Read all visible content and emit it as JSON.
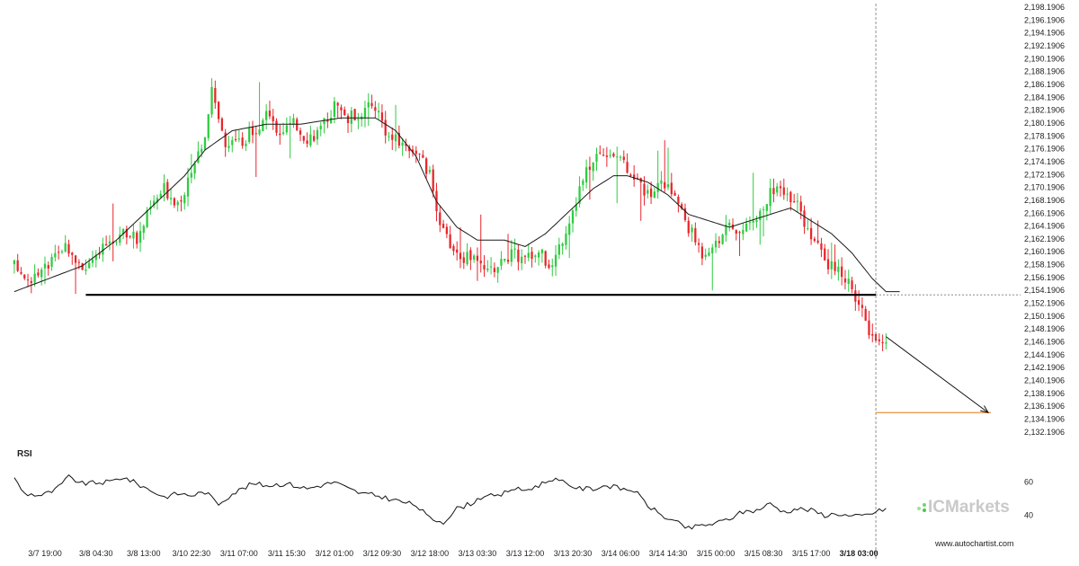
{
  "chart_data": {
    "type": "candlestick",
    "ylim": [
      2131.1906,
      2198.1906
    ],
    "y_ticks": [
      "2,198.1906",
      "2,196.1906",
      "2,194.1906",
      "2,192.1906",
      "2,190.1906",
      "2,188.1906",
      "2,186.1906",
      "2,184.1906",
      "2,182.1906",
      "2,180.1906",
      "2,178.1906",
      "2,176.1906",
      "2,174.1906",
      "2,172.1906",
      "2,170.1906",
      "2,168.1906",
      "2,166.1906",
      "2,164.1906",
      "2,162.1906",
      "2,160.1906",
      "2,158.1906",
      "2,156.1906",
      "2,154.1906",
      "2,152.1906",
      "2,150.1906",
      "2,148.1906",
      "2,146.1906",
      "2,144.1906",
      "2,142.1906",
      "2,140.1906",
      "2,138.1906",
      "2,136.1906",
      "2,134.1906",
      "2,132.1906"
    ],
    "x_ticks": [
      "3/7 19:00",
      "3/8 04:30",
      "3/8 13:00",
      "3/10 22:30",
      "3/11 07:00",
      "3/11 15:30",
      "3/12 01:00",
      "3/12 09:30",
      "3/12 18:00",
      "3/13 03:30",
      "3/13 12:00",
      "3/13 20:30",
      "3/14 06:00",
      "3/14 14:30",
      "3/15 00:00",
      "3/15 08:30",
      "3/15 17:00",
      "3/18 03:00"
    ],
    "x_ticks_bold": [
      "3/18 03:00"
    ],
    "close_path": [
      [
        0,
        2158
      ],
      [
        4,
        2156
      ],
      [
        8,
        2157
      ],
      [
        12,
        2159
      ],
      [
        16,
        2161
      ],
      [
        20,
        2158
      ],
      [
        24,
        2159
      ],
      [
        28,
        2162
      ],
      [
        32,
        2163
      ],
      [
        36,
        2162
      ],
      [
        40,
        2167
      ],
      [
        44,
        2170
      ],
      [
        48,
        2168
      ],
      [
        52,
        2172
      ],
      [
        56,
        2179
      ],
      [
        58,
        2186
      ],
      [
        62,
        2176
      ],
      [
        66,
        2177
      ],
      [
        70,
        2179
      ],
      [
        74,
        2181
      ],
      [
        78,
        2179
      ],
      [
        82,
        2180
      ],
      [
        86,
        2178
      ],
      [
        90,
        2179
      ],
      [
        94,
        2183
      ],
      [
        98,
        2181
      ],
      [
        102,
        2182
      ],
      [
        106,
        2183
      ],
      [
        110,
        2178
      ],
      [
        114,
        2177
      ],
      [
        118,
        2176
      ],
      [
        122,
        2172
      ],
      [
        126,
        2163
      ],
      [
        130,
        2160
      ],
      [
        134,
        2159
      ],
      [
        138,
        2157
      ],
      [
        142,
        2158
      ],
      [
        146,
        2160
      ],
      [
        150,
        2159
      ],
      [
        154,
        2160
      ],
      [
        158,
        2158
      ],
      [
        162,
        2164
      ],
      [
        166,
        2170
      ],
      [
        170,
        2175
      ],
      [
        174,
        2176
      ],
      [
        178,
        2175
      ],
      [
        182,
        2172
      ],
      [
        186,
        2169
      ],
      [
        190,
        2171
      ],
      [
        194,
        2169
      ],
      [
        198,
        2164
      ],
      [
        202,
        2160
      ],
      [
        206,
        2162
      ],
      [
        210,
        2164
      ],
      [
        214,
        2163
      ],
      [
        218,
        2166
      ],
      [
        222,
        2169
      ],
      [
        226,
        2170
      ],
      [
        230,
        2167
      ],
      [
        234,
        2163
      ],
      [
        238,
        2159
      ],
      [
        242,
        2157
      ],
      [
        246,
        2155
      ],
      [
        250,
        2149
      ],
      [
        252,
        2147
      ],
      [
        256,
        2147
      ]
    ],
    "ma_path": [
      [
        0,
        2154
      ],
      [
        10,
        2156
      ],
      [
        20,
        2158
      ],
      [
        30,
        2162
      ],
      [
        40,
        2167
      ],
      [
        50,
        2172
      ],
      [
        56,
        2176
      ],
      [
        64,
        2179
      ],
      [
        74,
        2180
      ],
      [
        84,
        2180
      ],
      [
        96,
        2181
      ],
      [
        106,
        2181
      ],
      [
        112,
        2179
      ],
      [
        118,
        2175
      ],
      [
        124,
        2168
      ],
      [
        130,
        2164
      ],
      [
        136,
        2162
      ],
      [
        144,
        2162
      ],
      [
        150,
        2161
      ],
      [
        156,
        2163
      ],
      [
        164,
        2167
      ],
      [
        170,
        2170
      ],
      [
        176,
        2172
      ],
      [
        180,
        2172
      ],
      [
        186,
        2171
      ],
      [
        192,
        2169
      ],
      [
        198,
        2166
      ],
      [
        204,
        2165
      ],
      [
        210,
        2164
      ],
      [
        216,
        2165
      ],
      [
        222,
        2166
      ],
      [
        228,
        2167
      ],
      [
        234,
        2165
      ],
      [
        240,
        2163
      ],
      [
        246,
        2160
      ],
      [
        252,
        2156
      ],
      [
        256,
        2154
      ]
    ],
    "ma_end_index": 260,
    "candle_count": 257,
    "support_level": 2153.5,
    "support_start_index": 21,
    "forecast": {
      "from_index": 256,
      "from_value": 2147,
      "to_index": 286,
      "to_value": 2135.2
    },
    "target_level": 2135.2,
    "current_time_index": 253,
    "current_price_marker": 2153.5,
    "x_tick_indices": [
      9,
      24,
      38,
      52,
      66,
      80,
      94,
      108,
      122,
      136,
      150,
      164,
      178,
      192,
      206,
      220,
      234,
      248
    ],
    "total_slots": 296,
    "rsi": {
      "label": "RSI",
      "ylim": [
        30,
        70
      ],
      "ticks": [
        "60",
        "40"
      ],
      "tick_values": [
        60,
        40
      ],
      "path": [
        [
          0,
          62
        ],
        [
          3,
          53
        ],
        [
          8,
          52
        ],
        [
          12,
          55
        ],
        [
          16,
          63
        ],
        [
          20,
          59
        ],
        [
          28,
          60
        ],
        [
          32,
          63
        ],
        [
          38,
          57
        ],
        [
          44,
          51
        ],
        [
          48,
          53
        ],
        [
          52,
          52
        ],
        [
          56,
          54
        ],
        [
          60,
          47
        ],
        [
          64,
          53
        ],
        [
          70,
          59
        ],
        [
          74,
          58
        ],
        [
          80,
          59
        ],
        [
          86,
          56
        ],
        [
          94,
          60
        ],
        [
          98,
          56
        ],
        [
          102,
          53
        ],
        [
          106,
          52
        ],
        [
          110,
          50
        ],
        [
          114,
          48
        ],
        [
          118,
          46
        ],
        [
          122,
          38
        ],
        [
          126,
          36
        ],
        [
          130,
          44
        ],
        [
          134,
          47
        ],
        [
          138,
          52
        ],
        [
          142,
          51
        ],
        [
          146,
          56
        ],
        [
          150,
          55
        ],
        [
          154,
          58
        ],
        [
          158,
          62
        ],
        [
          162,
          59
        ],
        [
          166,
          56
        ],
        [
          170,
          56
        ],
        [
          174,
          58
        ],
        [
          178,
          56
        ],
        [
          182,
          55
        ],
        [
          186,
          46
        ],
        [
          190,
          40
        ],
        [
          194,
          36
        ],
        [
          198,
          32
        ],
        [
          202,
          34
        ],
        [
          206,
          35
        ],
        [
          210,
          38
        ],
        [
          214,
          42
        ],
        [
          218,
          43
        ],
        [
          222,
          47
        ],
        [
          226,
          42
        ],
        [
          230,
          44
        ],
        [
          234,
          43
        ],
        [
          238,
          40
        ],
        [
          242,
          41
        ],
        [
          246,
          39
        ],
        [
          250,
          40
        ],
        [
          256,
          44
        ]
      ]
    }
  },
  "watermark": {
    "brand": "ICMarkets",
    "website": "www.autochartist.com"
  },
  "colors": {
    "up": "#2ecc40",
    "down": "#e8262c",
    "ma": "#1a1a1a",
    "support": "#000000",
    "target": "#e8903e",
    "forecast": "#111111",
    "current_time": "#777777"
  }
}
